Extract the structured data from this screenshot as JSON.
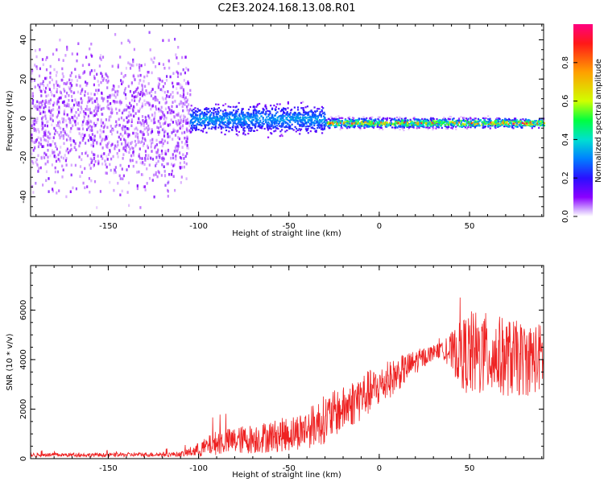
{
  "title": "C2E3.2024.168.13.08.R01",
  "colors": {
    "snr_line": "#ee2222",
    "spectrogram_palette": [
      "#ffffff",
      "#8a00ff",
      "#2a10ff",
      "#0080ff",
      "#00e0d0",
      "#00ff40",
      "#d0ff00",
      "#ffa000",
      "#ff1818",
      "#ff0080"
    ]
  },
  "chart_data": [
    {
      "type": "heatmap",
      "title": "C2E3.2024.168.13.08.R01",
      "xlabel": "Height of straight line (km)",
      "ylabel": "Frequency (Hz)",
      "xlim": [
        -193,
        91
      ],
      "ylim": [
        -50,
        48
      ],
      "x_ticks": [
        -150,
        -100,
        -50,
        0,
        50
      ],
      "x_tick_labels": [
        "-150",
        "-100",
        "-50",
        "0",
        "50"
      ],
      "y_ticks": [
        -40,
        -20,
        0,
        20,
        40
      ],
      "y_tick_labels": [
        "-40",
        "-20",
        "0",
        "20",
        "40"
      ],
      "grid": false,
      "colorbar": {
        "label": "Normalized spectral amplitude",
        "range": [
          0.0,
          1.0
        ],
        "ticks": [
          0.0,
          0.2,
          0.4,
          0.6,
          0.8
        ],
        "tick_labels": [
          "0.0",
          "0.2",
          "0.4",
          "0.6",
          "0.8"
        ],
        "placement": "right"
      },
      "regions": [
        {
          "x_range": [
            -193,
            -105
          ],
          "description_level": 0.05,
          "freq_center": 0,
          "freq_spread": 50
        },
        {
          "x_range": [
            -105,
            -30
          ],
          "description_level": 0.2,
          "freq_center": 0,
          "freq_spread": 10
        },
        {
          "x_range": [
            -30,
            91
          ],
          "description_level": 0.6,
          "freq_center": -2,
          "freq_spread": 4
        }
      ]
    },
    {
      "type": "line",
      "xlabel": "Height of straight line (km)",
      "ylabel": "SNR (10 * v/v)",
      "xlim": [
        -193,
        91
      ],
      "ylim": [
        0,
        7800
      ],
      "x_ticks": [
        -150,
        -100,
        -50,
        0,
        50
      ],
      "x_tick_labels": [
        "-150",
        "-100",
        "-50",
        "0",
        "50"
      ],
      "y_ticks": [
        0,
        2000,
        4000,
        6000
      ],
      "y_tick_labels": [
        "0",
        "2000",
        "4000",
        "6000"
      ],
      "grid": false,
      "series": [
        {
          "color": "#ee2222",
          "envelope_x": [
            -193,
            -150,
            -110,
            -100,
            -90,
            -70,
            -50,
            -40,
            -30,
            -20,
            -10,
            0,
            10,
            20,
            30,
            35,
            40,
            50,
            60,
            70,
            80,
            91
          ],
          "envelope_mean": [
            150,
            150,
            180,
            350,
            650,
            800,
            1000,
            1200,
            1600,
            2000,
            2500,
            2900,
            3400,
            3900,
            4300,
            4400,
            4300,
            4200,
            4200,
            4100,
            4000,
            4100
          ],
          "envelope_spread": [
            80,
            80,
            100,
            300,
            500,
            600,
            700,
            800,
            1000,
            900,
            1000,
            800,
            700,
            500,
            300,
            300,
            800,
            1800,
            1700,
            1600,
            1500,
            1400
          ]
        }
      ]
    }
  ]
}
